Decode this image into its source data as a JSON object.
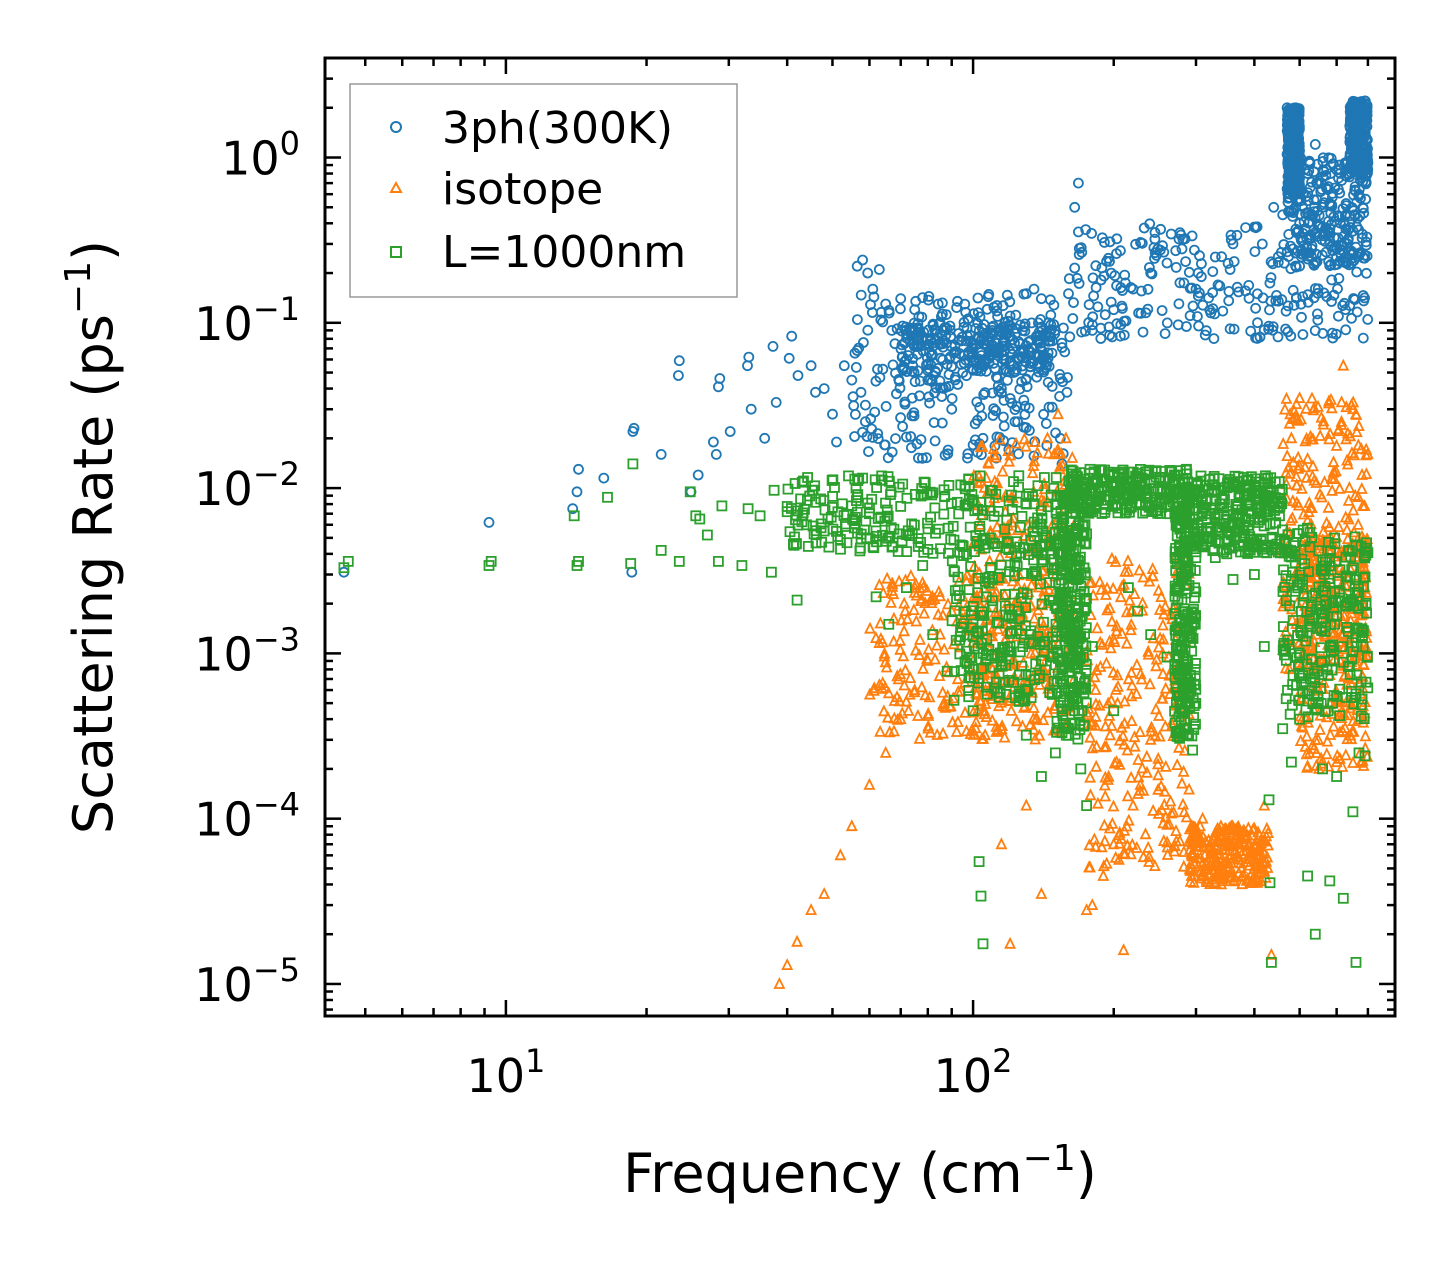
{
  "chart_data": {
    "type": "scatter",
    "title": "",
    "xlabel": "Frequency (cm",
    "xlabel_sup": "−1",
    "xlabel_end": ")",
    "ylabel": "Scattering Rate (ps",
    "ylabel_sup": "−1",
    "ylabel_end": ")",
    "xscale": "log",
    "yscale": "log",
    "xlim": [
      4.1,
      800
    ],
    "ylim": [
      6.4e-06,
      4.0
    ],
    "x_ticks": [
      {
        "value": 10,
        "base": "10",
        "exp": "1"
      },
      {
        "value": 100,
        "base": "10",
        "exp": "2"
      }
    ],
    "y_ticks": [
      {
        "value": 1,
        "base": "10",
        "exp": "0"
      },
      {
        "value": 0.1,
        "base": "10",
        "exp": "−1"
      },
      {
        "value": 0.01,
        "base": "10",
        "exp": "−2"
      },
      {
        "value": 0.001,
        "base": "10",
        "exp": "−3"
      },
      {
        "value": 0.0001,
        "base": "10",
        "exp": "−4"
      },
      {
        "value": 1e-05,
        "base": "10",
        "exp": "−5"
      }
    ],
    "legend_position": "top-left",
    "series": [
      {
        "name": "3ph(300K)",
        "marker": "circle",
        "color": "#1f77b4",
        "points": [
          [
            4.5,
            0.0031
          ],
          [
            9.2,
            0.0062
          ],
          [
            13.9,
            0.0075
          ],
          [
            14.2,
            0.0095
          ],
          [
            14.3,
            0.013
          ],
          [
            16.2,
            0.0115
          ],
          [
            18.6,
            0.0031
          ],
          [
            18.7,
            0.022
          ],
          [
            18.8,
            0.023
          ],
          [
            21.5,
            0.016
          ],
          [
            23.4,
            0.048
          ],
          [
            23.5,
            0.059
          ],
          [
            24.9,
            0.0095
          ],
          [
            25.8,
            0.012
          ],
          [
            27.8,
            0.019
          ],
          [
            28.2,
            0.016
          ],
          [
            28.5,
            0.041
          ],
          [
            28.7,
            0.046
          ],
          [
            30.2,
            0.022
          ],
          [
            32.9,
            0.055
          ],
          [
            33.1,
            0.062
          ],
          [
            33.5,
            0.03
          ],
          [
            35.8,
            0.02
          ],
          [
            37.3,
            0.072
          ],
          [
            37.9,
            0.033
          ],
          [
            40.4,
            0.061
          ],
          [
            40.9,
            0.083
          ],
          [
            42.2,
            0.048
          ],
          [
            45.0,
            0.055
          ],
          [
            46.0,
            0.038
          ],
          [
            48.0,
            0.04
          ],
          [
            50.0,
            0.028
          ],
          [
            51.0,
            0.019
          ],
          [
            53.0,
            0.055
          ],
          [
            55.0,
            0.045
          ],
          [
            56.5,
            0.22
          ],
          [
            58.0,
            0.24
          ],
          [
            59.5,
            0.2
          ],
          [
            61.0,
            0.16
          ],
          [
            63.0,
            0.21
          ],
          [
            65.0,
            0.13
          ],
          [
            67.0,
            0.09
          ],
          [
            70.0,
            0.14
          ],
          [
            72.0,
            0.06
          ],
          [
            75.0,
            0.12
          ],
          [
            78.0,
            0.08
          ],
          [
            80.0,
            0.045
          ],
          [
            85.0,
            0.1
          ],
          [
            90.0,
            0.03
          ],
          [
            95.0,
            0.05
          ],
          [
            100.0,
            0.07
          ],
          [
            105.0,
            0.02
          ],
          [
            110.0,
            0.09
          ],
          [
            115.0,
            0.04
          ],
          [
            120.0,
            0.11
          ],
          [
            125.0,
            0.06
          ],
          [
            130.0,
            0.15
          ],
          [
            135.0,
            0.16
          ],
          [
            140.0,
            0.14
          ],
          [
            145.0,
            0.1
          ],
          [
            150.0,
            0.09
          ],
          [
            155.0,
            0.014
          ],
          [
            160.0,
            0.15
          ],
          [
            165.0,
            0.5
          ],
          [
            168.0,
            0.7
          ],
          [
            180.0,
            0.09
          ],
          [
            200.0,
            0.12
          ],
          [
            220.0,
            0.16
          ],
          [
            240.0,
            0.2
          ],
          [
            260.0,
            0.23
          ],
          [
            280.0,
            0.28
          ],
          [
            300.0,
            0.16
          ],
          [
            330.0,
            0.25
          ],
          [
            360.0,
            0.3
          ],
          [
            400.0,
            0.38
          ],
          [
            440.0,
            0.5
          ],
          [
            460.0,
            0.45
          ],
          [
            470.0,
            2.0
          ],
          [
            480.0,
            1.8
          ],
          [
            490.0,
            1.3
          ],
          [
            500.0,
            0.22
          ],
          [
            520.0,
            0.8
          ],
          [
            540.0,
            1.2
          ],
          [
            560.0,
            0.5
          ],
          [
            580.0,
            0.35
          ],
          [
            600.0,
            0.25
          ],
          [
            620.0,
            0.4
          ],
          [
            640.0,
            1.0
          ],
          [
            660.0,
            1.6
          ],
          [
            680.0,
            2.1
          ],
          [
            690.0,
            2.2
          ]
        ],
        "bands": [
          [
            55,
            160,
            0.015,
            0.15
          ],
          [
            70,
            150,
            0.05,
            0.1
          ],
          [
            160,
            700,
            0.08,
            0.4
          ],
          [
            470,
            700,
            0.22,
            1.0
          ],
          [
            470,
            500,
            0.6,
            2.0
          ],
          [
            640,
            700,
            0.8,
            2.2
          ]
        ]
      },
      {
        "name": "isotope",
        "marker": "triangle",
        "color": "#ff7f0e",
        "points": [
          [
            38.5,
            1e-05
          ],
          [
            40.0,
            1.3e-05
          ],
          [
            42.0,
            1.8e-05
          ],
          [
            45.0,
            2.8e-05
          ],
          [
            48.0,
            3.5e-05
          ],
          [
            52.0,
            6e-05
          ],
          [
            55.0,
            9e-05
          ],
          [
            60.0,
            0.00016
          ],
          [
            65.0,
            0.00025
          ],
          [
            70.0,
            0.0004
          ],
          [
            75.0,
            0.0006
          ],
          [
            80.0,
            0.0009
          ],
          [
            85.0,
            0.0013
          ],
          [
            90.0,
            0.0018
          ],
          [
            95.0,
            0.0022
          ],
          [
            100.0,
            0.0009
          ],
          [
            105.0,
            0.0012
          ],
          [
            110.0,
            0.0008
          ],
          [
            115.0,
            7e-05
          ],
          [
            120.0,
            1.75e-05
          ],
          [
            125.0,
            0.0015
          ],
          [
            130.0,
            0.00012
          ],
          [
            140.0,
            3.5e-05
          ],
          [
            148.0,
            0.006
          ],
          [
            152.0,
            0.028
          ],
          [
            158.0,
            0.02
          ],
          [
            162.0,
            0.0005
          ],
          [
            175.0,
            2.8e-05
          ],
          [
            180.0,
            3e-05
          ],
          [
            190.0,
            4.5e-05
          ],
          [
            200.0,
            7e-05
          ],
          [
            210.0,
            1.6e-05
          ],
          [
            220.0,
            0.00012
          ],
          [
            240.0,
            0.0003
          ],
          [
            255.0,
            0.00075
          ],
          [
            265.0,
            0.0017
          ],
          [
            275.0,
            0.0035
          ],
          [
            290.0,
            0.00015
          ],
          [
            310.0,
            0.0001
          ],
          [
            340.0,
            8e-05
          ],
          [
            380.0,
            7e-05
          ],
          [
            410.0,
            6e-05
          ],
          [
            420.0,
            0.00012
          ],
          [
            435.0,
            1.5e-05
          ],
          [
            460.0,
            0.0045
          ],
          [
            480.0,
            0.02
          ],
          [
            500.0,
            0.035
          ],
          [
            520.0,
            0.015
          ],
          [
            550.0,
            0.0002
          ],
          [
            600.0,
            0.018
          ],
          [
            620.0,
            0.055
          ],
          [
            650.0,
            0.03
          ],
          [
            680.0,
            0.012
          ],
          [
            700.0,
            0.016
          ]
        ],
        "bands": [
          [
            60,
            150,
            0.0003,
            0.003
          ],
          [
            100,
            165,
            0.0003,
            0.02
          ],
          [
            175,
            290,
            5e-05,
            0.004
          ],
          [
            290,
            430,
            4e-05,
            9e-05
          ],
          [
            460,
            700,
            0.0008,
            0.035
          ],
          [
            500,
            700,
            0.0002,
            0.005
          ]
        ]
      },
      {
        "name": "L=1000nm",
        "marker": "square",
        "color": "#2ca02c",
        "points": [
          [
            4.5,
            0.0033
          ],
          [
            4.6,
            0.0036
          ],
          [
            9.2,
            0.0034
          ],
          [
            9.3,
            0.0036
          ],
          [
            14.2,
            0.0034
          ],
          [
            14.3,
            0.0036
          ],
          [
            14.0,
            0.0068
          ],
          [
            16.5,
            0.0088
          ],
          [
            18.5,
            0.0035
          ],
          [
            18.7,
            0.014
          ],
          [
            21.5,
            0.0042
          ],
          [
            23.5,
            0.0036
          ],
          [
            24.8,
            0.0095
          ],
          [
            25.5,
            0.0068
          ],
          [
            26.0,
            0.0065
          ],
          [
            27.0,
            0.0052
          ],
          [
            28.5,
            0.0036
          ],
          [
            29.0,
            0.0078
          ],
          [
            32.0,
            0.0034
          ],
          [
            33.0,
            0.0075
          ],
          [
            35.0,
            0.0068
          ],
          [
            37.0,
            0.0031
          ],
          [
            37.5,
            0.0097
          ],
          [
            40.0,
            0.0072
          ],
          [
            42.0,
            0.0021
          ],
          [
            44.0,
            0.006
          ],
          [
            46.0,
            0.0082
          ],
          [
            48.0,
            0.0055
          ],
          [
            52.0,
            0.0049
          ],
          [
            55.0,
            0.0078
          ],
          [
            58.0,
            0.0115
          ],
          [
            60.0,
            0.007
          ],
          [
            62.0,
            0.0022
          ],
          [
            66.0,
            0.0015
          ],
          [
            72.0,
            0.0025
          ],
          [
            78.0,
            0.0034
          ],
          [
            82.0,
            0.0013
          ],
          [
            88.0,
            0.00078
          ],
          [
            92.0,
            0.0012
          ],
          [
            100.0,
            0.00045
          ],
          [
            103.0,
            5.5e-05
          ],
          [
            104.0,
            3.4e-05
          ],
          [
            105.0,
            1.75e-05
          ],
          [
            110.0,
            0.0028
          ],
          [
            120.0,
            0.0011
          ],
          [
            130.0,
            0.00032
          ],
          [
            140.0,
            0.00018
          ],
          [
            150.0,
            0.00025
          ],
          [
            160.0,
            0.00035
          ],
          [
            165.0,
            0.00045
          ],
          [
            170.0,
            0.0002
          ],
          [
            175.0,
            0.00012
          ],
          [
            180.0,
            0.0011
          ],
          [
            200.0,
            0.00045
          ],
          [
            215.0,
            0.0025
          ],
          [
            225.0,
            0.0018
          ],
          [
            240.0,
            0.0013
          ],
          [
            260.0,
            0.00095
          ],
          [
            280.0,
            0.00082
          ],
          [
            295.0,
            0.00026
          ],
          [
            310.0,
            0.0045
          ],
          [
            330.0,
            0.0038
          ],
          [
            360.0,
            0.0028
          ],
          [
            400.0,
            0.003
          ],
          [
            420.0,
            0.0011
          ],
          [
            430.0,
            0.00013
          ],
          [
            432.0,
            4.1e-05
          ],
          [
            435.0,
            1.35e-05
          ],
          [
            460.0,
            0.00035
          ],
          [
            480.0,
            0.00022
          ],
          [
            500.0,
            0.0004
          ],
          [
            520.0,
            4.5e-05
          ],
          [
            540.0,
            2e-05
          ],
          [
            560.0,
            0.0002
          ],
          [
            580.0,
            4.2e-05
          ],
          [
            600.0,
            0.00018
          ],
          [
            620.0,
            3.3e-05
          ],
          [
            650.0,
            0.00011
          ],
          [
            660.0,
            1.35e-05
          ],
          [
            670.0,
            0.00025
          ],
          [
            690.0,
            0.00024
          ]
        ],
        "bands": [
          [
            40,
            160,
            0.004,
            0.012
          ],
          [
            90,
            170,
            0.0005,
            0.005
          ],
          [
            150,
            175,
            0.0003,
            0.01
          ],
          [
            160,
            290,
            0.007,
            0.013
          ],
          [
            270,
            300,
            0.0003,
            0.01
          ],
          [
            300,
            460,
            0.004,
            0.012
          ],
          [
            460,
            700,
            0.0004,
            0.006
          ]
        ]
      }
    ]
  }
}
